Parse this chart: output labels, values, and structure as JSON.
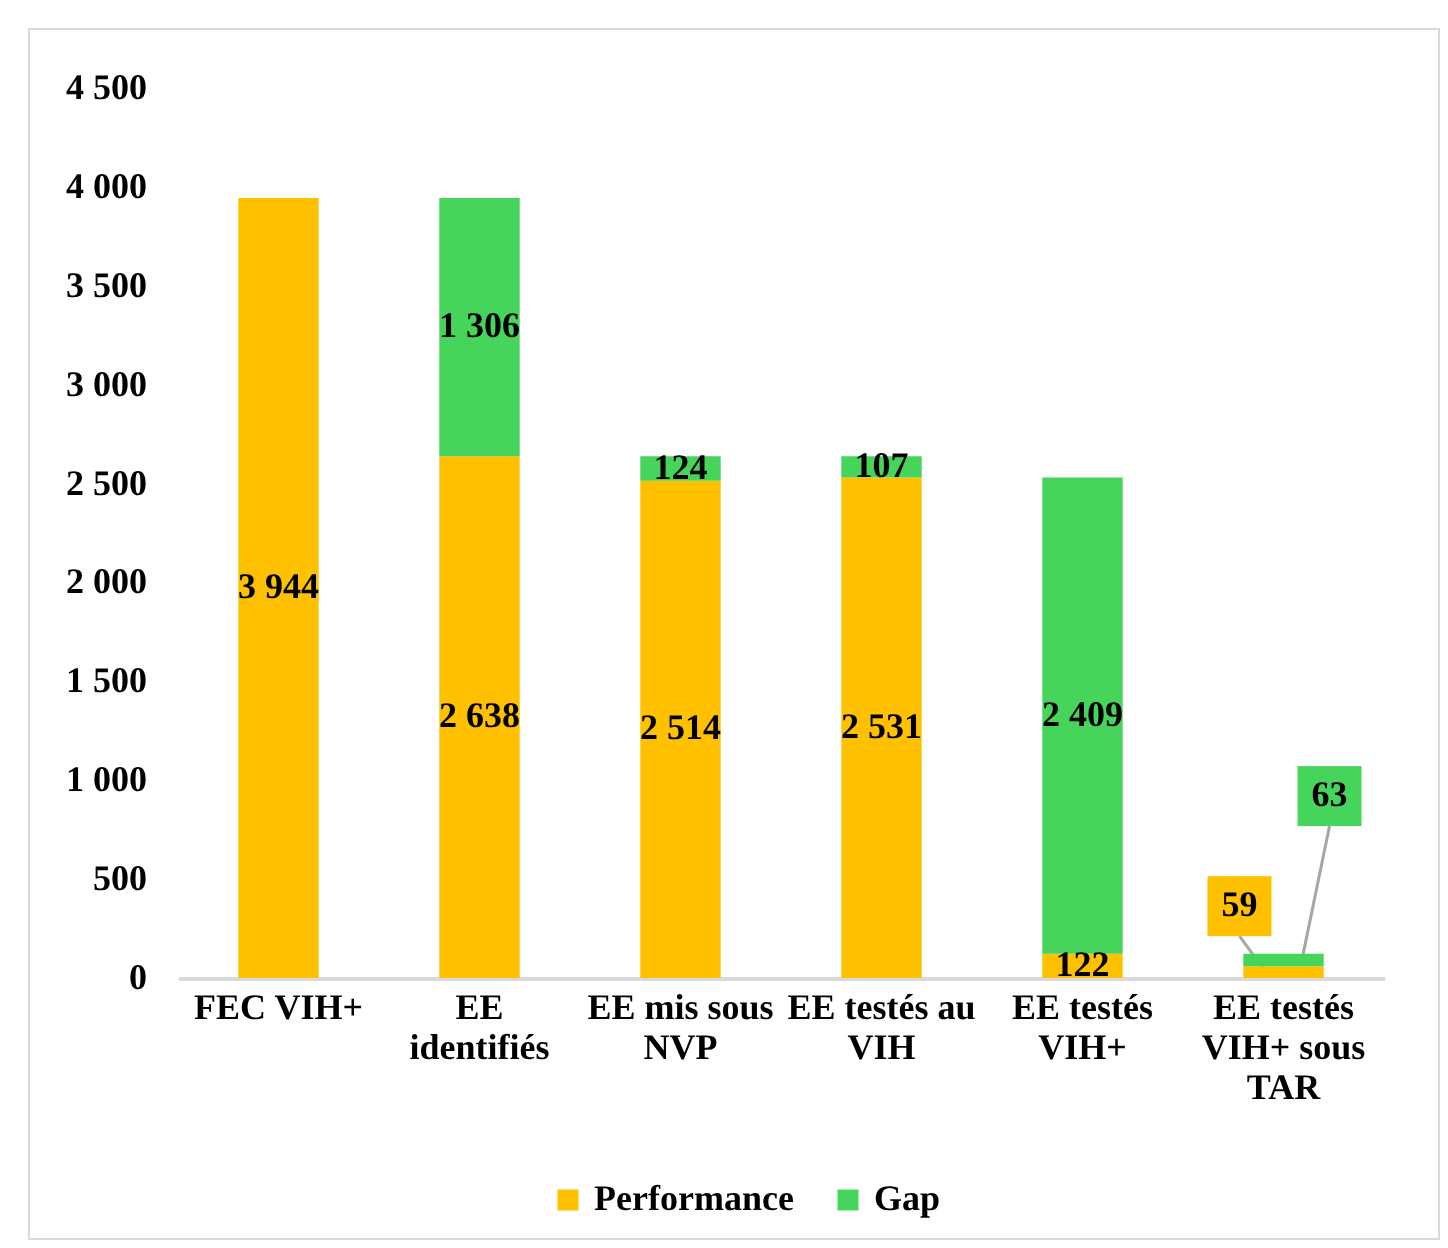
{
  "chart_data": {
    "type": "bar",
    "stacked": true,
    "categories": [
      "FEC VIH+",
      "EE identifiés",
      "EE mis sous NVP",
      "EE testés au VIH",
      "EE testés VIH+",
      "EE testés VIH+ sous TAR"
    ],
    "series": [
      {
        "name": "Performance",
        "color": "#ffc000",
        "values": [
          3944,
          2638,
          2514,
          2531,
          122,
          59
        ],
        "value_labels": [
          "3 944",
          "2 638",
          "2 514",
          "2 531",
          "122",
          "59"
        ]
      },
      {
        "name": "Gap",
        "color": "#47d45a",
        "values": [
          null,
          1306,
          124,
          107,
          2409,
          63
        ],
        "value_labels": [
          null,
          "1 306",
          "124",
          "107",
          "2 409",
          "63"
        ]
      }
    ],
    "ylim": [
      0,
      4500
    ],
    "yticks": [
      0,
      500,
      {
        "value": 1000,
        "label": "1 000"
      },
      {
        "value": 1500,
        "label": "1 500"
      },
      {
        "value": 2000,
        "label": "2 000"
      },
      {
        "value": 2500,
        "label": "2 500"
      },
      {
        "value": 3000,
        "label": "3 000"
      },
      {
        "value": 3500,
        "label": "3 500"
      },
      {
        "value": 4000,
        "label": "4 000"
      },
      {
        "value": 4500,
        "label": "4 500"
      }
    ],
    "grid": false,
    "legend": "bottom"
  }
}
